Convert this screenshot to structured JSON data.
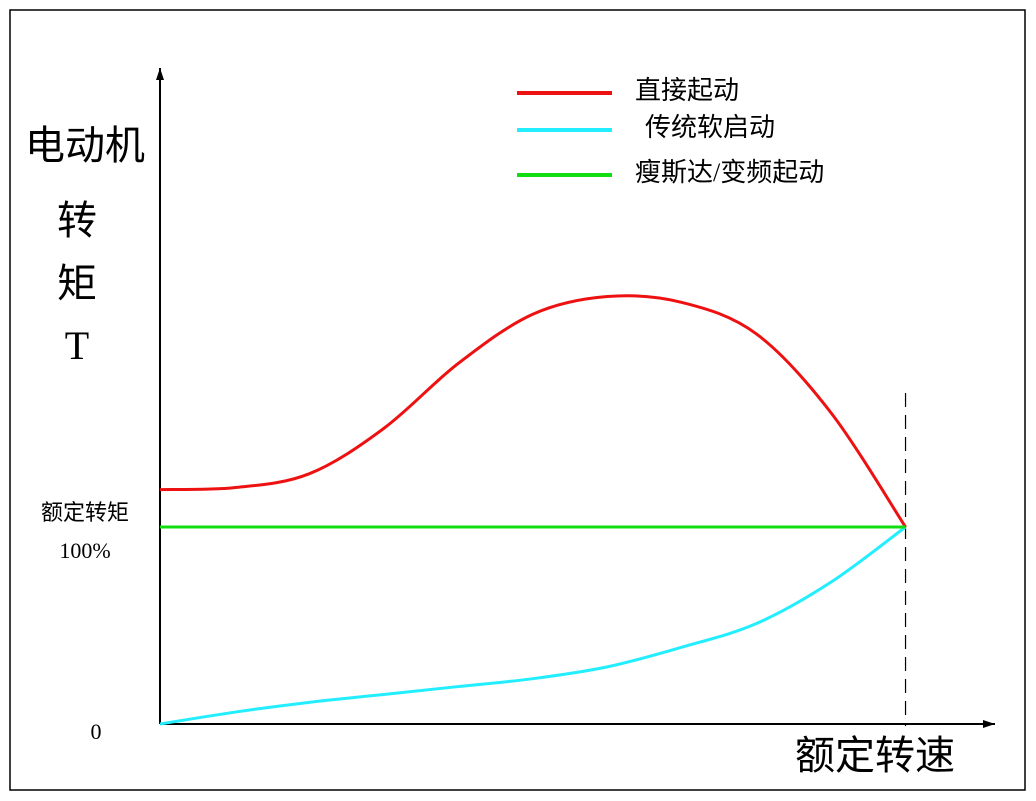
{
  "chart_data": {
    "type": "line",
    "ylabel_lines": [
      "电动机",
      "转",
      "矩",
      "T"
    ],
    "xlabel": "额定转速",
    "ytick_title": "额定转矩",
    "x": [
      0,
      10,
      20,
      30,
      40,
      50,
      60,
      70,
      80,
      90,
      100
    ],
    "series": [
      {
        "name": "直接起动",
        "color": "#ee1111",
        "values": [
          119,
          120,
          127,
          150,
          183,
          208,
          217,
          214,
          198,
          158,
          100
        ]
      },
      {
        "name": "传统软启动",
        "color": "#22eeff",
        "values": [
          0,
          6,
          11,
          15,
          19,
          23,
          29,
          39,
          51,
          72,
          100
        ]
      },
      {
        "name": "瘦斯达/变频起动",
        "color": "#11dd11",
        "values": [
          100,
          100,
          100,
          100,
          100,
          100,
          100,
          100,
          100,
          100,
          100
        ]
      }
    ],
    "xlim": [
      0,
      112
    ],
    "ylim": [
      0,
      333
    ],
    "yticks": [
      0,
      {
        "value": 100,
        "label": "100%"
      }
    ],
    "legend": "top-right"
  }
}
